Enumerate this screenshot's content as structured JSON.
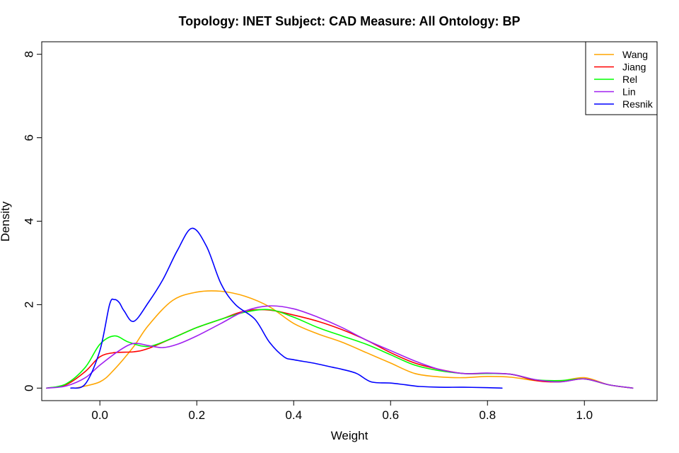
{
  "chart_data": {
    "type": "line",
    "title": "Topology: INET   Subject: CAD   Measure: All   Ontology: BP",
    "xlabel": "Weight",
    "ylabel": "Density",
    "xlim": [
      -0.12,
      1.15
    ],
    "ylim": [
      -0.3,
      8.3
    ],
    "xticks": [
      0.0,
      0.2,
      0.4,
      0.6,
      0.8,
      1.0
    ],
    "xtick_labels": [
      "0.0",
      "0.2",
      "0.4",
      "0.6",
      "0.8",
      "1.0"
    ],
    "yticks": [
      0,
      2,
      4,
      6,
      8
    ],
    "ytick_labels": [
      "0",
      "2",
      "4",
      "6",
      "8"
    ],
    "grid": false,
    "legend_position": "top-right",
    "series": [
      {
        "name": "Wang",
        "color": "#FFA500",
        "x": [
          -0.05,
          0.0,
          0.03,
          0.07,
          0.1,
          0.15,
          0.2,
          0.25,
          0.3,
          0.35,
          0.4,
          0.45,
          0.5,
          0.55,
          0.6,
          0.65,
          0.7,
          0.75,
          0.8,
          0.85,
          0.9,
          0.95,
          1.0,
          1.05,
          1.1
        ],
        "y": [
          0.0,
          0.15,
          0.45,
          1.0,
          1.5,
          2.1,
          2.3,
          2.32,
          2.2,
          1.95,
          1.55,
          1.3,
          1.1,
          0.85,
          0.6,
          0.35,
          0.27,
          0.25,
          0.28,
          0.26,
          0.18,
          0.17,
          0.25,
          0.08,
          0.0
        ]
      },
      {
        "name": "Jiang",
        "color": "#FF0000",
        "x": [
          -0.11,
          -0.07,
          -0.03,
          0.0,
          0.03,
          0.07,
          0.1,
          0.15,
          0.2,
          0.25,
          0.3,
          0.35,
          0.4,
          0.45,
          0.5,
          0.55,
          0.6,
          0.65,
          0.7,
          0.75,
          0.8,
          0.85,
          0.9,
          0.95,
          1.0,
          1.05,
          1.1
        ],
        "y": [
          0.0,
          0.08,
          0.4,
          0.75,
          0.85,
          0.87,
          0.95,
          1.2,
          1.45,
          1.65,
          1.85,
          1.87,
          1.75,
          1.6,
          1.4,
          1.15,
          0.85,
          0.6,
          0.45,
          0.35,
          0.35,
          0.33,
          0.18,
          0.15,
          0.22,
          0.08,
          0.0
        ]
      },
      {
        "name": "Rel",
        "color": "#00FF00",
        "x": [
          -0.11,
          -0.07,
          -0.03,
          0.0,
          0.03,
          0.06,
          0.1,
          0.15,
          0.2,
          0.25,
          0.3,
          0.35,
          0.4,
          0.45,
          0.5,
          0.55,
          0.6,
          0.65,
          0.7,
          0.75,
          0.8,
          0.85,
          0.9,
          0.95,
          1.0,
          1.05,
          1.1
        ],
        "y": [
          0.0,
          0.1,
          0.5,
          1.05,
          1.25,
          1.1,
          1.0,
          1.2,
          1.45,
          1.65,
          1.82,
          1.88,
          1.7,
          1.45,
          1.25,
          1.05,
          0.8,
          0.55,
          0.42,
          0.35,
          0.35,
          0.33,
          0.2,
          0.18,
          0.22,
          0.08,
          0.0
        ]
      },
      {
        "name": "Lin",
        "color": "#A020F0",
        "x": [
          -0.11,
          -0.07,
          -0.03,
          0.0,
          0.04,
          0.07,
          0.1,
          0.13,
          0.16,
          0.2,
          0.25,
          0.3,
          0.35,
          0.4,
          0.45,
          0.5,
          0.55,
          0.6,
          0.65,
          0.7,
          0.75,
          0.8,
          0.85,
          0.9,
          0.95,
          1.0,
          1.05,
          1.1
        ],
        "y": [
          0.0,
          0.05,
          0.25,
          0.55,
          0.9,
          1.07,
          1.02,
          0.97,
          1.05,
          1.25,
          1.55,
          1.85,
          1.97,
          1.9,
          1.7,
          1.45,
          1.15,
          0.9,
          0.65,
          0.45,
          0.35,
          0.36,
          0.33,
          0.2,
          0.15,
          0.22,
          0.08,
          0.0
        ]
      },
      {
        "name": "Resnik",
        "color": "#0000FF",
        "x": [
          -0.06,
          -0.03,
          0.0,
          0.02,
          0.03,
          0.04,
          0.05,
          0.07,
          0.1,
          0.13,
          0.16,
          0.19,
          0.22,
          0.25,
          0.28,
          0.32,
          0.35,
          0.38,
          0.4,
          0.44,
          0.48,
          0.5,
          0.53,
          0.56,
          0.6,
          0.63,
          0.66,
          0.7,
          0.75,
          0.8,
          0.83
        ],
        "y": [
          0.0,
          0.1,
          0.9,
          2.0,
          2.12,
          2.05,
          1.85,
          1.6,
          2.05,
          2.6,
          3.3,
          3.83,
          3.4,
          2.5,
          2.0,
          1.65,
          1.1,
          0.75,
          0.68,
          0.6,
          0.5,
          0.45,
          0.35,
          0.15,
          0.12,
          0.08,
          0.04,
          0.02,
          0.02,
          0.01,
          0.0
        ]
      }
    ]
  }
}
